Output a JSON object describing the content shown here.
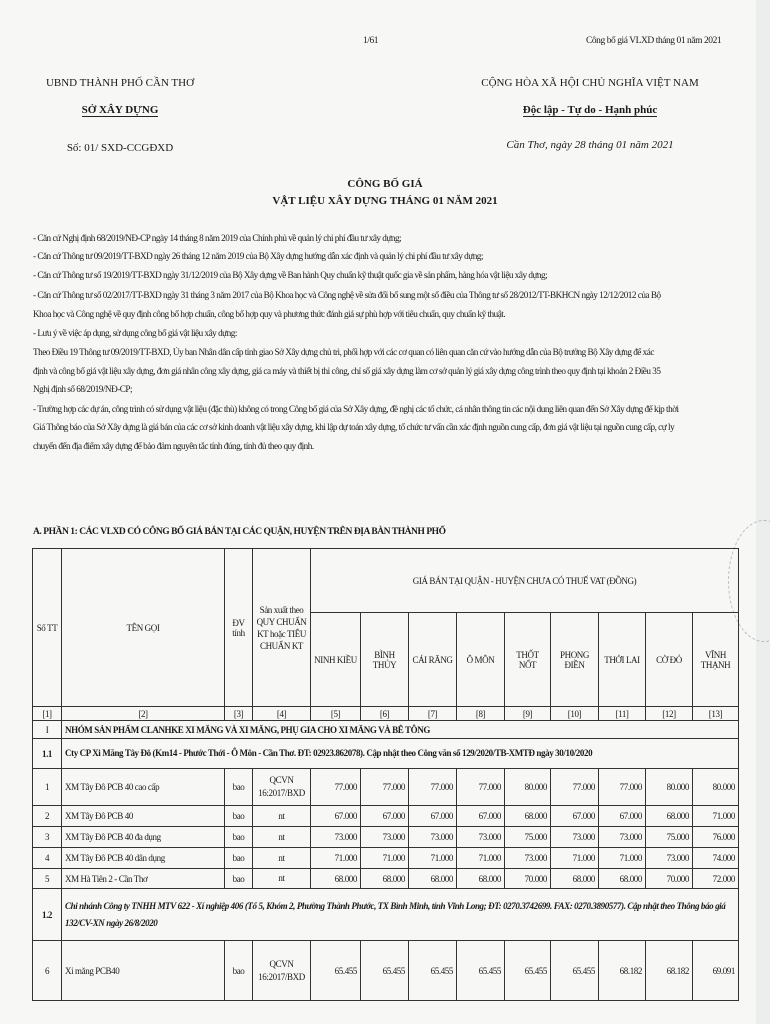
{
  "page_header": {
    "page_number": "1/61",
    "running_title": "Công bố giá VLXD tháng 01 năm 2021"
  },
  "left_header": {
    "authority": "UBND THÀNH PHỐ CẦN THƠ",
    "department": "SỞ XÂY DỰNG",
    "doc_number": "Số: 01/ SXD-CCGĐXD"
  },
  "right_header": {
    "country": "CỘNG HÒA XÃ HỘI CHỦ NGHĨA VIỆT NAM",
    "motto": "Độc lập - Tự do - Hạnh phúc",
    "date_line": "Cần Thơ, ngày 28 tháng 01 năm 2021"
  },
  "title": {
    "line1": "CÔNG BỐ GIÁ",
    "line2": "VẬT LIỆU XÂY DỰNG THÁNG 01 NĂM 2021"
  },
  "paragraphs": [
    "- Căn cứ Nghị định 68/2019/NĐ-CP ngày 14 tháng 8 năm 2019 của Chính phủ về quản lý chi phí đầu tư xây dựng;",
    "- Căn cứ Thông tư 09/2019/TT-BXD ngày 26 tháng 12 năm 2019 của Bộ Xây dựng hướng dẫn xác định và quản lý chi phí đầu tư xây dựng;",
    "- Căn cứ Thông tư số 19/2019/TT-BXD ngày 31/12/2019 của Bộ Xây dựng về Ban hành Quy chuẩn kỹ thuật quốc gia về sản phẩm, hàng hóa vật liệu xây dựng;",
    "- Căn cứ Thông tư số 02/2017/TT-BXD ngày 31 tháng 3 năm 2017 của Bộ Khoa học và Công nghệ về sửa đổi bổ sung một số điều của Thông tư số 28/2012/TT-BKHCN ngày 12/12/2012 của Bộ",
    "Khoa học và Công nghệ về quy định công bố hợp chuẩn, công bố hợp quy và phương thức đánh giá sự phù hợp với tiêu chuẩn, quy chuẩn kỹ thuật.",
    "- Lưu ý về việc áp dụng, sử dụng công bố giá vật liệu xây dựng:",
    "  Theo Điều 19 Thông tư 09/2019/TT-BXD, Ủy ban Nhân dân cấp tỉnh giao Sở Xây dựng chủ trì, phối hợp với các cơ quan có liên quan căn cứ vào hướng dẫn của Bộ trưởng Bộ Xây dựng để xác",
    "định và công bố giá vật liệu xây dựng, đơn giá nhân công xây dựng, giá ca máy và thiết bị thi công, chỉ số giá xây dựng làm cơ sở quản lý giá xây dựng công trình theo quy định tại khoản 2 Điều 35",
    "Nghị định số 68/2019/NĐ-CP;",
    "- Trường hợp các dự án, công trình có sử dụng vật liệu (đặc thù) không có trong Công bố giá của Sở Xây dựng, đề nghị các tổ chức, cá nhân thông tin các nội dung liên quan đến Sở Xây dựng để kịp thời",
    "  Giá Thông báo của Sở Xây dựng là giá bán của các cơ sở kinh doanh vật liệu xây dựng, khi lập dự toán xây dựng, tổ chức tư vấn cần xác định nguồn cung cấp, đơn giá vật liệu tại nguồn cung cấp, cự ly",
    "chuyển đến địa điểm xây dựng để bảo đảm nguyên tắc tính đúng, tính đủ theo quy định."
  ],
  "section_title": "A. PHẦN 1: CÁC VLXD CÓ CÔNG BỐ GIÁ BÁN TẠI CÁC QUẬN, HUYỆN TRÊN ĐỊA BÀN THÀNH PHỐ",
  "table": {
    "headers": {
      "stt": "Số TT",
      "name": "TÊN GỌI",
      "unit": "ĐV tính",
      "standard": "Sản xuất theo QUY CHUẨN KT hoặc TIÊU CHUẨN KT",
      "price_group": "GIÁ BÁN TẠI QUẬN - HUYỆN CHƯA CÓ THUẾ VAT (ĐỒNG)",
      "districts": [
        "NINH KIỀU",
        "BÌNH THỦY",
        "CÁI RĂNG",
        "Ô MÔN",
        "THỐT NỐT",
        "PHONG ĐIỀN",
        "THỚI LAI",
        "CỜ ĐỎ",
        "VĨNH THẠNH"
      ]
    },
    "column_numbers": [
      "[1]",
      "[2]",
      "[3]",
      "[4]",
      "[5]",
      "[6]",
      "[7]",
      "[8]",
      "[9]",
      "[10]",
      "[11]",
      "[12]",
      "[13]"
    ],
    "group": {
      "stt": "I",
      "label": "NHÓM SẢN PHẨM CLANHKE XI MĂNG VÀ XI MĂNG, PHỤ GIA CHO XI MĂNG VÀ BÊ TÔNG"
    },
    "suppliers": [
      {
        "stt": "1.1",
        "label": "Cty CP Xi Măng Tây Đô (Km14 - Phước Thới - Ô Môn - Cần Thơ. ĐT: 02923.862078). Cập nhật theo Công văn số 129/2020/TB-XMTĐ ngày 30/10/2020",
        "italic": false,
        "items": [
          {
            "stt": "1",
            "name": "XM Tây Đô PCB 40 cao cấp",
            "unit": "bao",
            "standard": "QCVN 16:2017/BXD",
            "prices": [
              "77.000",
              "77.000",
              "77.000",
              "77.000",
              "80.000",
              "77.000",
              "77.000",
              "80.000",
              "80.000"
            ]
          },
          {
            "stt": "2",
            "name": "XM Tây Đô PCB 40",
            "unit": "bao",
            "standard": "nt",
            "prices": [
              "67.000",
              "67.000",
              "67.000",
              "67.000",
              "68.000",
              "67.000",
              "67.000",
              "68.000",
              "71.000"
            ]
          },
          {
            "stt": "3",
            "name": "XM Tây Đô PCB 40 đa dụng",
            "unit": "bao",
            "standard": "nt",
            "prices": [
              "73.000",
              "73.000",
              "73.000",
              "73.000",
              "75.000",
              "73.000",
              "73.000",
              "75.000",
              "76.000"
            ]
          },
          {
            "stt": "4",
            "name": "XM Tây Đô PCB 40 dân dụng",
            "unit": "bao",
            "standard": "nt",
            "prices": [
              "71.000",
              "71.000",
              "71.000",
              "71.000",
              "73.000",
              "71.000",
              "71.000",
              "73.000",
              "74.000"
            ]
          },
          {
            "stt": "5",
            "name": "XM Hà Tiên 2 - Cần Thơ",
            "unit": "bao",
            "standard": "nt",
            "prices": [
              "68.000",
              "68.000",
              "68.000",
              "68.000",
              "70.000",
              "68.000",
              "68.000",
              "70.000",
              "72.000"
            ]
          }
        ]
      },
      {
        "stt": "1.2",
        "label": "Chi nhánh Công ty TNHH MTV 622 - Xí nghiệp 406 (Tổ 5, Khóm 2, Phường Thành Phước, TX Bình Minh, tỉnh Vĩnh Long; ĐT: 0270.3742699. FAX: 0270.3890577). Cập nhật theo Thông báo giá 132/CV-XN ngày 26/8/2020",
        "italic": true,
        "items": [
          {
            "stt": "6",
            "name": "Xi măng PCB40",
            "unit": "bao",
            "standard": "QCVN 16:2017/BXD",
            "prices": [
              "65.455",
              "65.455",
              "65.455",
              "65.455",
              "65.455",
              "65.455",
              "68.182",
              "68.182",
              "69.091"
            ]
          }
        ]
      }
    ]
  }
}
